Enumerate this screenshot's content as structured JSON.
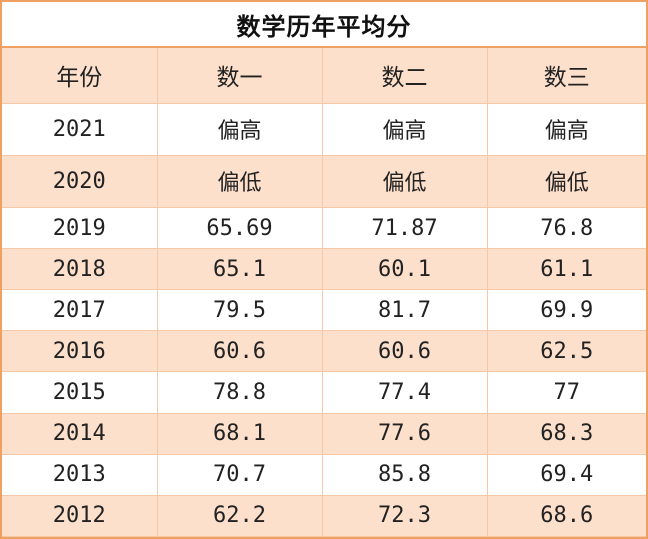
{
  "table": {
    "title": "数学历年平均分",
    "headers": [
      "年份",
      "数一",
      "数二",
      "数三"
    ],
    "rows": [
      [
        "2021",
        "偏高",
        "偏高",
        "偏高"
      ],
      [
        "2020",
        "偏低",
        "偏低",
        "偏低"
      ],
      [
        "2019",
        "65.69",
        "71.87",
        "76.8"
      ],
      [
        "2018",
        "65.1",
        "60.1",
        "61.1"
      ],
      [
        "2017",
        "79.5",
        "81.7",
        "69.9"
      ],
      [
        "2016",
        "60.6",
        "60.6",
        "62.5"
      ],
      [
        "2015",
        "78.8",
        "77.4",
        "77"
      ],
      [
        "2014",
        "68.1",
        "77.6",
        "68.3"
      ],
      [
        "2013",
        "70.7",
        "85.8",
        "69.4"
      ],
      [
        "2012",
        "62.2",
        "72.3",
        "68.6"
      ]
    ]
  },
  "colors": {
    "border": "#f0a060",
    "band": "#fde0cc",
    "plain": "#ffffff"
  }
}
